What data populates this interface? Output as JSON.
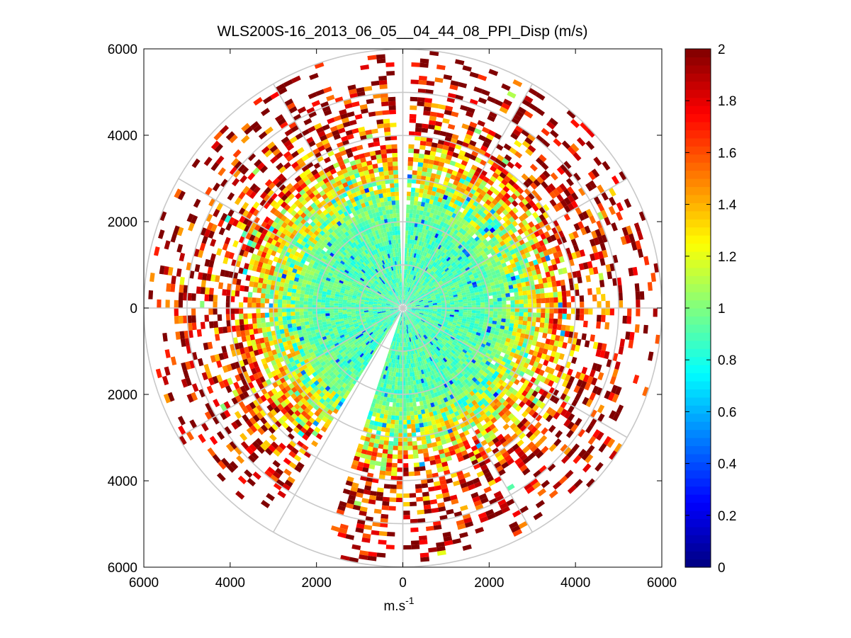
{
  "chart_data": {
    "type": "heatmap",
    "title": "WLS200S-16_2013_06_05__04_44_08_PPI_Disp (m/s)",
    "xlabel": "m.s",
    "xlabel_superscript": "-1",
    "ylabel": "",
    "xlim": [
      -6000,
      6000
    ],
    "ylim": [
      -6000,
      6000
    ],
    "x_ticks": [
      -6000,
      -4000,
      -2000,
      0,
      2000,
      4000,
      6000
    ],
    "y_ticks": [
      6000,
      4000,
      2000,
      0,
      -2000,
      -4000,
      -6000
    ],
    "x_tick_labels": [
      "6000",
      "4000",
      "2000",
      "0",
      "2000",
      "4000",
      "6000"
    ],
    "y_tick_labels": [
      "6000",
      "4000",
      "2000",
      "0",
      "2000",
      "4000",
      "6000"
    ],
    "polar_grid": {
      "range_rings": [
        1000,
        2000,
        3000,
        4000,
        5000,
        6000
      ],
      "spoke_angles_deg": [
        0,
        30,
        60,
        90,
        120,
        150,
        180,
        210,
        240,
        270,
        300,
        330
      ],
      "color": "#c8c8c8"
    },
    "colorbar": {
      "colormap": "jet",
      "clim": [
        0,
        2
      ],
      "ticks": [
        0,
        0.2,
        0.4,
        0.6,
        0.8,
        1,
        1.2,
        1.4,
        1.6,
        1.8,
        2
      ],
      "tick_labels": [
        "0",
        "0.2",
        "0.4",
        "0.6",
        "0.8",
        "1",
        "1.2",
        "1.4",
        "1.6",
        "1.8",
        "2"
      ]
    },
    "field_description": {
      "max_range": 6000,
      "range_gate": 100,
      "azimuth_step_deg": 2,
      "empty_sector_deg": [
        [
          -1.5,
          1.5
        ],
        [
          199,
          213
        ]
      ],
      "radial_profile": [
        {
          "r": 0,
          "value": 0.9,
          "coverage": 1.0
        },
        {
          "r": 2000,
          "value": 0.92,
          "coverage": 1.0
        },
        {
          "r": 3000,
          "value": 1.15,
          "coverage": 0.95
        },
        {
          "r": 4000,
          "value": 1.7,
          "coverage": 0.6
        },
        {
          "r": 5000,
          "value": 1.9,
          "coverage": 0.35
        },
        {
          "r": 6000,
          "value": 1.95,
          "coverage": 0.15
        }
      ]
    }
  }
}
